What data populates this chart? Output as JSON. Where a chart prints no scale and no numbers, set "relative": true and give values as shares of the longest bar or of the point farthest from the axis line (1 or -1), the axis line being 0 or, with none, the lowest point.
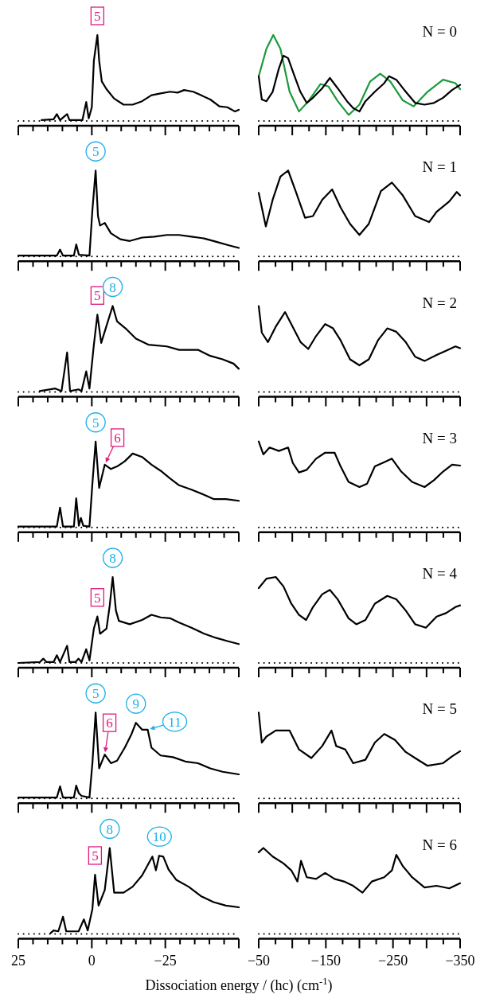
{
  "chart_data": [
    {
      "type": "line",
      "relative": true,
      "xlim": [
        25,
        -50
      ],
      "tick_labels": false,
      "xticks": [
        25,
        20,
        15,
        10,
        5,
        0,
        -5,
        -10,
        -15,
        -20,
        -25,
        -30,
        -35,
        -40,
        -45,
        -50
      ],
      "ref_lines": [
        {
          "axis": "y",
          "value": 0,
          "color": "#000000",
          "line_style": "dotted"
        }
      ],
      "annotations": [
        {
          "text": "5",
          "x": -1.9,
          "y": 1
        }
      ],
      "series": [
        {
          "color": "#000000",
          "x": [
            17.1,
            13.0,
            11.9,
            10.8,
            8.4,
            7.6,
            3.2,
            1.9,
            1.05,
            0,
            -0.7,
            -1.9,
            -2.5,
            -3.4,
            -5,
            -7.6,
            -10.8,
            -13.9,
            -17.1,
            -20.3,
            -23.4,
            -26.6,
            -29.2,
            -31.4,
            -34.5,
            -37.1,
            -40.3,
            -43.4,
            -46.1,
            -48.7,
            -50
          ],
          "values": [
            0.01,
            0.02,
            0.08,
            0.01,
            0.08,
            0.01,
            0.01,
            0.22,
            0.03,
            0.16,
            0.7,
            1,
            0.7,
            0.46,
            0.37,
            0.26,
            0.19,
            0.19,
            0.23,
            0.3,
            0.32,
            0.34,
            0.33,
            0.36,
            0.34,
            0.3,
            0.25,
            0.17,
            0.16,
            0.11,
            0.13
          ]
        }
      ]
    },
    {
      "type": "line",
      "relative": true,
      "title": "N = 0",
      "xlim": [
        -50,
        -350
      ],
      "tick_labels": false,
      "xticks": [
        -50,
        -75,
        -100,
        -125,
        -150,
        -175,
        -200,
        -225,
        -250,
        -275,
        -300,
        -325,
        -350
      ],
      "ref_lines": [
        {
          "axis": "y",
          "value": 0,
          "color": "#000000",
          "line_style": "dotted"
        }
      ],
      "series": [
        {
          "color": "#1a9a3c",
          "x": [
            -50,
            -61.5,
            -71.7,
            -82.3,
            -96,
            -110,
            -124,
            -142,
            -154,
            -167.7,
            -184,
            -200,
            -216,
            -231,
            -246,
            -264.6,
            -280.7,
            -301.5,
            -324.6,
            -343,
            -350
          ],
          "values": [
            0.52,
            0.84,
            1,
            0.84,
            0.34,
            0.11,
            0.23,
            0.43,
            0.4,
            0.23,
            0.07,
            0.19,
            0.46,
            0.55,
            0.46,
            0.24,
            0.17,
            0.34,
            0.48,
            0.44,
            0.37
          ]
        },
        {
          "color": "#000000",
          "x": [
            -50,
            -54.6,
            -61.5,
            -70.8,
            -80,
            -86.9,
            -93.8,
            -103,
            -112,
            -121.5,
            -130.8,
            -144.6,
            -156,
            -167.7,
            -181.5,
            -190.7,
            -200,
            -209,
            -223,
            -237,
            -244,
            -255,
            -269,
            -283,
            -297,
            -311,
            -324.6,
            -338,
            -350
          ],
          "values": [
            0.52,
            0.25,
            0.23,
            0.34,
            0.61,
            0.76,
            0.73,
            0.53,
            0.34,
            0.21,
            0.27,
            0.38,
            0.5,
            0.38,
            0.23,
            0.15,
            0.11,
            0.23,
            0.34,
            0.44,
            0.52,
            0.48,
            0.34,
            0.21,
            0.19,
            0.21,
            0.27,
            0.36,
            0.42
          ]
        }
      ]
    },
    {
      "type": "line",
      "relative": true,
      "xlim": [
        25,
        -50
      ],
      "tick_labels": false,
      "xticks": [
        25,
        20,
        15,
        10,
        5,
        0,
        -5,
        -10,
        -15,
        -20,
        -25,
        -30,
        -35,
        -40,
        -45,
        -50
      ],
      "ref_lines": [
        {
          "axis": "y",
          "value": 0,
          "color": "#000000",
          "line_style": "dotted"
        }
      ],
      "annotations": [
        {
          "text": "5",
          "x": -1.3,
          "y": 1
        }
      ],
      "series": [
        {
          "color": "#000000",
          "x": [
            25,
            11.9,
            10.8,
            9.8,
            6.1,
            5.3,
            4.4,
            0.8,
            -0.2,
            -1.3,
            -2.1,
            -2.8,
            -4.4,
            -6.5,
            -9.7,
            -12.9,
            -17.1,
            -21.3,
            -25.5,
            -29.7,
            -33.9,
            -38.2,
            -42.4,
            -46.6,
            -50
          ],
          "values": [
            0.01,
            0.01,
            0.08,
            0.01,
            0.01,
            0.14,
            0.02,
            0.01,
            0.54,
            1,
            0.47,
            0.36,
            0.39,
            0.27,
            0.2,
            0.18,
            0.22,
            0.23,
            0.25,
            0.25,
            0.23,
            0.21,
            0.17,
            0.13,
            0.1
          ]
        }
      ]
    },
    {
      "type": "line",
      "relative": true,
      "title": "N = 1",
      "xlim": [
        -50,
        -350
      ],
      "tick_labels": false,
      "xticks": [
        -50,
        -75,
        -100,
        -125,
        -150,
        -175,
        -200,
        -225,
        -250,
        -275,
        -300,
        -325,
        -350
      ],
      "ref_lines": [
        {
          "axis": "y",
          "value": 0,
          "color": "#000000",
          "line_style": "dotted"
        }
      ],
      "series": [
        {
          "color": "#000000",
          "x": [
            -50,
            -60.6,
            -70.8,
            -82.3,
            -93.8,
            -105,
            -119,
            -130.8,
            -144.6,
            -159.4,
            -172,
            -186,
            -200,
            -214,
            -232,
            -248.4,
            -264.6,
            -283,
            -303.8,
            -315,
            -333.8,
            -345,
            -350
          ],
          "values": [
            0.74,
            0.35,
            0.66,
            0.93,
            1,
            0.76,
            0.45,
            0.47,
            0.66,
            0.78,
            0.57,
            0.38,
            0.25,
            0.38,
            0.76,
            0.86,
            0.71,
            0.47,
            0.4,
            0.52,
            0.64,
            0.75,
            0.71
          ]
        }
      ]
    },
    {
      "type": "line",
      "relative": true,
      "xlim": [
        25,
        -50
      ],
      "tick_labels": false,
      "xticks": [
        25,
        20,
        15,
        10,
        5,
        0,
        -5,
        -10,
        -15,
        -20,
        -25,
        -30,
        -35,
        -40,
        -45,
        -50
      ],
      "ref_lines": [
        {
          "axis": "y",
          "value": 0,
          "color": "#000000",
          "line_style": "dotted"
        }
      ],
      "annotations": [
        {
          "text": "5",
          "x": -1.9,
          "y": 0.9
        },
        {
          "text": "8",
          "x": -7.1,
          "y": 1
        }
      ],
      "series": [
        {
          "color": "#000000",
          "x": [
            17.7,
            12.4,
            10.3,
            8.4,
            7.4,
            4.5,
            3.5,
            1.9,
            0.8,
            -0.7,
            -1.9,
            -3.2,
            -5,
            -7.1,
            -8.6,
            -11.8,
            -15,
            -19.2,
            -25.5,
            -29.7,
            -36.1,
            -40.3,
            -44.5,
            -48.2,
            -50
          ],
          "values": [
            0.01,
            0.04,
            0.01,
            0.46,
            0.01,
            0.03,
            0.01,
            0.24,
            0.04,
            0.55,
            0.9,
            0.57,
            0.77,
            1,
            0.82,
            0.73,
            0.62,
            0.55,
            0.53,
            0.49,
            0.49,
            0.42,
            0.38,
            0.33,
            0.27
          ]
        }
      ]
    },
    {
      "type": "line",
      "relative": true,
      "title": "N = 2",
      "xlim": [
        -50,
        -350
      ],
      "tick_labels": false,
      "xticks": [
        -50,
        -75,
        -100,
        -125,
        -150,
        -175,
        -200,
        -225,
        -250,
        -275,
        -300,
        -325,
        -350
      ],
      "ref_lines": [
        {
          "axis": "y",
          "value": 0,
          "color": "#000000",
          "line_style": "dotted"
        }
      ],
      "series": [
        {
          "color": "#000000",
          "x": [
            -50,
            -54.6,
            -63.8,
            -75.4,
            -89.2,
            -98.5,
            -112.3,
            -123.8,
            -135.4,
            -149,
            -160.7,
            -172,
            -186,
            -200,
            -214,
            -227.6,
            -241.5,
            -255,
            -269,
            -283,
            -297,
            -315,
            -329,
            -343,
            -350
          ],
          "values": [
            1,
            0.69,
            0.58,
            0.76,
            0.93,
            0.79,
            0.58,
            0.5,
            0.65,
            0.79,
            0.74,
            0.6,
            0.38,
            0.31,
            0.38,
            0.6,
            0.74,
            0.7,
            0.58,
            0.41,
            0.36,
            0.43,
            0.48,
            0.53,
            0.51
          ]
        }
      ]
    },
    {
      "type": "line",
      "relative": true,
      "xlim": [
        25,
        -50
      ],
      "tick_labels": false,
      "xticks": [
        25,
        20,
        15,
        10,
        5,
        0,
        -5,
        -10,
        -15,
        -20,
        -25,
        -30,
        -35,
        -40,
        -45,
        -50
      ],
      "ref_lines": [
        {
          "axis": "y",
          "value": 0,
          "color": "#000000",
          "line_style": "dotted"
        }
      ],
      "annotations": [
        {
          "text": "5",
          "x": -1.3,
          "y": 1
        },
        {
          "text": "6",
          "x": -4.4,
          "y": 0.73
        }
      ],
      "series": [
        {
          "color": "#000000",
          "x": [
            25,
            11.9,
            10.8,
            9.8,
            6.1,
            5.3,
            4.4,
            3.7,
            2.9,
            0.8,
            -0.2,
            -1.3,
            -2.5,
            -4.4,
            -6.5,
            -8.6,
            -11.2,
            -13.9,
            -17.1,
            -20.3,
            -23.4,
            -26.6,
            -29.7,
            -33.9,
            -38.2,
            -41.4,
            -45.6,
            -50
          ],
          "values": [
            0.01,
            0.01,
            0.23,
            0.01,
            0.01,
            0.34,
            0.02,
            0.11,
            0.02,
            0.01,
            0.51,
            1,
            0.46,
            0.73,
            0.68,
            0.71,
            0.77,
            0.86,
            0.82,
            0.73,
            0.66,
            0.57,
            0.49,
            0.44,
            0.38,
            0.33,
            0.33,
            0.31
          ]
        }
      ]
    },
    {
      "type": "line",
      "relative": true,
      "title": "N = 3",
      "xlim": [
        -50,
        -350
      ],
      "tick_labels": false,
      "xticks": [
        -50,
        -75,
        -100,
        -125,
        -150,
        -175,
        -200,
        -225,
        -250,
        -275,
        -300,
        -325,
        -350
      ],
      "ref_lines": [
        {
          "axis": "y",
          "value": 0,
          "color": "#000000",
          "line_style": "dotted"
        }
      ],
      "series": [
        {
          "color": "#000000",
          "x": [
            -50,
            -56.9,
            -66.2,
            -80,
            -93.8,
            -100.8,
            -110,
            -121.5,
            -135.4,
            -149,
            -163,
            -172,
            -183.8,
            -200,
            -211.5,
            -223,
            -237,
            -248.4,
            -262.3,
            -278.4,
            -297,
            -311,
            -324.6,
            -338,
            -350
          ],
          "values": [
            1,
            0.85,
            0.93,
            0.89,
            0.93,
            0.75,
            0.64,
            0.67,
            0.8,
            0.87,
            0.87,
            0.71,
            0.53,
            0.47,
            0.51,
            0.71,
            0.76,
            0.8,
            0.65,
            0.53,
            0.47,
            0.55,
            0.65,
            0.73,
            0.72
          ]
        }
      ]
    },
    {
      "type": "line",
      "relative": true,
      "xlim": [
        25,
        -50
      ],
      "tick_labels": false,
      "xticks": [
        25,
        20,
        15,
        10,
        5,
        0,
        -5,
        -10,
        -15,
        -20,
        -25,
        -30,
        -35,
        -40,
        -45,
        -50
      ],
      "ref_lines": [
        {
          "axis": "y",
          "value": 0,
          "color": "#000000",
          "line_style": "dotted"
        }
      ],
      "annotations": [
        {
          "text": "8",
          "x": -7.1,
          "y": 1
        },
        {
          "text": "5",
          "x": -1.9,
          "y": 0.54
        }
      ],
      "series": [
        {
          "color": "#000000",
          "x": [
            25,
            17.7,
            16.5,
            15.4,
            13,
            11.9,
            10.8,
            8.4,
            7.6,
            5.6,
            4.5,
            3.5,
            1.9,
            0.8,
            -0.7,
            -1.9,
            -2.8,
            -5,
            -6.1,
            -7.1,
            -8.2,
            -9.2,
            -12.9,
            -17.1,
            -20.3,
            -23.4,
            -26.6,
            -29.7,
            -33.9,
            -38.2,
            -42.4,
            -46.6,
            -50
          ],
          "values": [
            0,
            0.01,
            0.05,
            0.01,
            0.01,
            0.09,
            0.01,
            0.2,
            0.01,
            0.01,
            0.05,
            0.01,
            0.16,
            0.03,
            0.4,
            0.54,
            0.34,
            0.4,
            0.67,
            1,
            0.61,
            0.49,
            0.45,
            0.5,
            0.56,
            0.53,
            0.52,
            0.47,
            0.41,
            0.34,
            0.29,
            0.25,
            0.22
          ]
        }
      ]
    },
    {
      "type": "line",
      "relative": true,
      "title": "N = 4",
      "xlim": [
        -50,
        -350
      ],
      "tick_labels": false,
      "xticks": [
        -50,
        -75,
        -100,
        -125,
        -150,
        -175,
        -200,
        -225,
        -250,
        -275,
        -300,
        -325,
        -350
      ],
      "ref_lines": [
        {
          "axis": "y",
          "value": 0,
          "color": "#000000",
          "line_style": "dotted"
        }
      ],
      "series": [
        {
          "color": "#000000",
          "x": [
            -50,
            -61.5,
            -75.4,
            -86.9,
            -98.5,
            -110,
            -120.6,
            -130.8,
            -144.6,
            -156,
            -167.7,
            -183.8,
            -195.4,
            -209,
            -223,
            -241.5,
            -255,
            -269,
            -283,
            -299,
            -315,
            -329,
            -343,
            -350
          ],
          "values": [
            0.87,
            0.98,
            1,
            0.89,
            0.69,
            0.56,
            0.5,
            0.65,
            0.8,
            0.85,
            0.74,
            0.52,
            0.45,
            0.5,
            0.69,
            0.78,
            0.74,
            0.61,
            0.45,
            0.41,
            0.54,
            0.58,
            0.65,
            0.67
          ]
        }
      ]
    },
    {
      "type": "line",
      "relative": true,
      "xlim": [
        25,
        -50
      ],
      "tick_labels": false,
      "xticks": [
        25,
        20,
        15,
        10,
        5,
        0,
        -5,
        -10,
        -15,
        -20,
        -25,
        -30,
        -35,
        -40,
        -45,
        -50
      ],
      "ref_lines": [
        {
          "axis": "y",
          "value": 0,
          "color": "#000000",
          "line_style": "dotted"
        }
      ],
      "annotations": [
        {
          "text": "5",
          "x": -1.3,
          "y": 1
        },
        {
          "text": "6",
          "x": -4.4,
          "y": 0.51
        },
        {
          "text": "9",
          "x": -15,
          "y": 0.88
        },
        {
          "text": "11",
          "x": -19,
          "y": 0.8
        }
      ],
      "series": [
        {
          "color": "#000000",
          "x": [
            25,
            11.9,
            10.8,
            9.8,
            6.1,
            5.3,
            4.4,
            3.5,
            0.8,
            -0.2,
            -1.3,
            -2.5,
            -4.4,
            -6.5,
            -8.6,
            -11.2,
            -13.4,
            -15,
            -17.1,
            -19,
            -20.3,
            -23.4,
            -27.6,
            -31.8,
            -36.1,
            -40.3,
            -44.5,
            -50
          ],
          "values": [
            0.01,
            0.01,
            0.14,
            0.01,
            0.01,
            0.15,
            0.06,
            0.03,
            0.01,
            0.41,
            1,
            0.35,
            0.51,
            0.41,
            0.44,
            0.59,
            0.74,
            0.88,
            0.8,
            0.8,
            0.59,
            0.5,
            0.48,
            0.43,
            0.41,
            0.35,
            0.31,
            0.28
          ]
        }
      ]
    },
    {
      "type": "line",
      "relative": true,
      "title": "N = 5",
      "xlim": [
        -50,
        -350
      ],
      "tick_labels": false,
      "xticks": [
        -50,
        -75,
        -100,
        -125,
        -150,
        -175,
        -200,
        -225,
        -250,
        -275,
        -300,
        -325,
        -350
      ],
      "ref_lines": [
        {
          "axis": "y",
          "value": 0,
          "color": "#000000",
          "line_style": "dotted"
        }
      ],
      "series": [
        {
          "color": "#000000",
          "x": [
            -50,
            -54.6,
            -61.5,
            -75.4,
            -96,
            -110,
            -128.4,
            -144.6,
            -158.4,
            -165.4,
            -179,
            -190.7,
            -209,
            -223,
            -237,
            -253,
            -269,
            -283,
            -301.5,
            -324.6,
            -338,
            -350
          ],
          "values": [
            1,
            0.65,
            0.72,
            0.79,
            0.79,
            0.57,
            0.47,
            0.61,
            0.79,
            0.61,
            0.57,
            0.41,
            0.45,
            0.65,
            0.75,
            0.68,
            0.54,
            0.47,
            0.38,
            0.41,
            0.49,
            0.55
          ]
        }
      ]
    },
    {
      "type": "line",
      "relative": true,
      "xlim": [
        25,
        -50
      ],
      "tick_labels": "x",
      "xlabel": "Dissociation energy / (hc)  (cm$^{-1}$)",
      "xticks": [
        {
          "value": 25,
          "label": "25"
        },
        {
          "value": 20,
          "label": null
        },
        {
          "value": 15,
          "label": null
        },
        {
          "value": 10,
          "label": null
        },
        {
          "value": 5,
          "label": null
        },
        0,
        {
          "value": -5,
          "label": null
        },
        {
          "value": -10,
          "label": null
        },
        {
          "value": -15,
          "label": null
        },
        {
          "value": -20,
          "label": null
        },
        {
          "value": -25,
          "label": "−25"
        },
        {
          "value": -30,
          "label": null
        },
        {
          "value": -35,
          "label": null
        },
        {
          "value": -40,
          "label": null
        },
        {
          "value": -45,
          "label": null
        },
        {
          "value": -50,
          "label": null
        }
      ],
      "ref_lines": [
        {
          "axis": "y",
          "value": 0,
          "color": "#000000",
          "line_style": "dotted"
        }
      ],
      "annotations": [
        {
          "text": "5",
          "x": -1.1,
          "y": 0.69
        },
        {
          "text": "8",
          "x": -6.1,
          "y": 1
        },
        {
          "text": "10",
          "x": -23,
          "y": 0.91
        }
      ],
      "series": [
        {
          "color": "#000000",
          "x": [
            14,
            13,
            11.4,
            9.8,
            8.7,
            4.5,
            2.7,
            1.4,
            -0.2,
            -1.1,
            -2.3,
            -4.4,
            -6.1,
            -7.6,
            -10.8,
            -13.9,
            -17.1,
            -20.6,
            -21.8,
            -22.9,
            -24.3,
            -26.1,
            -28.7,
            -32.9,
            -37.1,
            -41.4,
            -45.6,
            -50
          ],
          "values": [
            0.01,
            0.04,
            0.03,
            0.2,
            0.03,
            0.03,
            0.17,
            0.04,
            0.29,
            0.69,
            0.33,
            0.51,
            1,
            0.48,
            0.48,
            0.55,
            0.68,
            0.9,
            0.74,
            0.91,
            0.9,
            0.75,
            0.63,
            0.55,
            0.44,
            0.37,
            0.33,
            0.31
          ]
        }
      ]
    },
    {
      "type": "line",
      "relative": true,
      "title": "N = 6",
      "xlim": [
        -50,
        -350
      ],
      "tick_labels": "x",
      "xticks": [
        {
          "value": -50,
          "label": "−50"
        },
        {
          "value": -75,
          "label": null
        },
        {
          "value": -100,
          "label": null
        },
        {
          "value": -125,
          "label": null
        },
        {
          "value": -150,
          "label": "−150"
        },
        {
          "value": -175,
          "label": null
        },
        {
          "value": -200,
          "label": null
        },
        {
          "value": -225,
          "label": null
        },
        {
          "value": -250,
          "label": "−250"
        },
        {
          "value": -275,
          "label": null
        },
        {
          "value": -300,
          "label": null
        },
        {
          "value": -325,
          "label": null
        },
        {
          "value": -350,
          "label": "−350"
        }
      ],
      "ref_lines": [
        {
          "axis": "y",
          "value": 0,
          "color": "#000000",
          "line_style": "dotted"
        }
      ],
      "series": [
        {
          "color": "#000000",
          "x": [
            -50,
            -56.9,
            -70.8,
            -86.9,
            -98.5,
            -107.7,
            -113,
            -121.5,
            -135.4,
            -149,
            -163,
            -177,
            -190.7,
            -204.6,
            -218.5,
            -237,
            -248.4,
            -255,
            -264.6,
            -278.4,
            -297,
            -315,
            -333.8,
            -350
          ],
          "values": [
            0.95,
            1,
            0.9,
            0.82,
            0.74,
            0.61,
            0.85,
            0.66,
            0.64,
            0.71,
            0.64,
            0.61,
            0.56,
            0.48,
            0.61,
            0.66,
            0.74,
            0.92,
            0.79,
            0.66,
            0.54,
            0.56,
            0.53,
            0.59
          ]
        }
      ]
    }
  ]
}
